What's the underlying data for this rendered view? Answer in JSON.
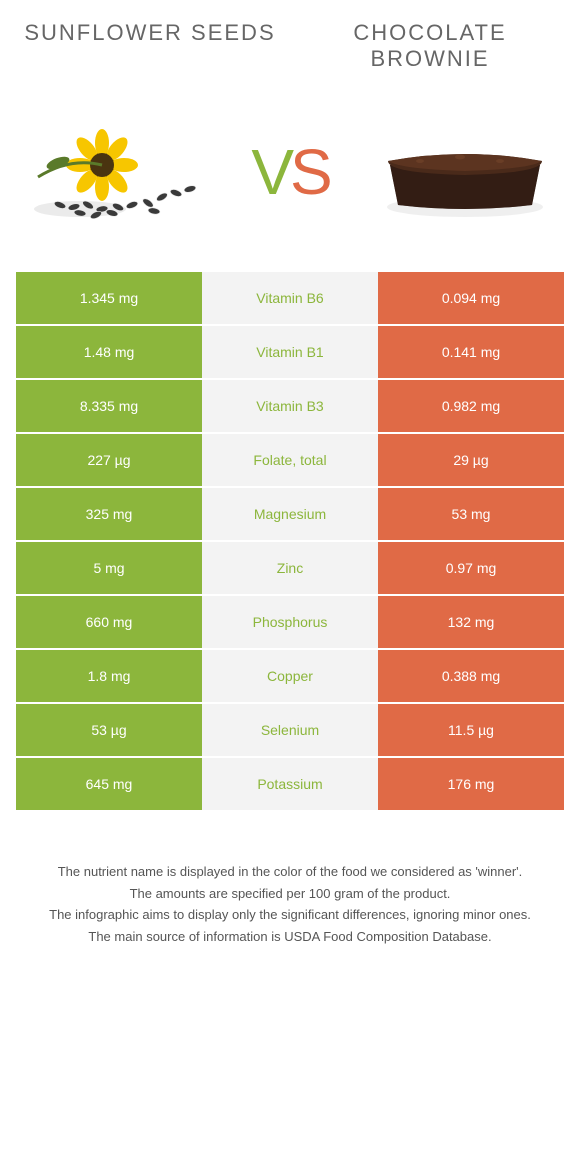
{
  "colors": {
    "left": "#8cb63c",
    "right": "#e06a46",
    "mid_bg": "#f3f3f3",
    "page_bg": "#ffffff",
    "text": "#555555"
  },
  "header": {
    "left_title": "Sunflower seeds",
    "right_title": "Chocolate brownie",
    "vs_v": "V",
    "vs_s": "S"
  },
  "rows": [
    {
      "left": "1.345 mg",
      "label": "Vitamin B6",
      "right": "0.094 mg",
      "winner": "green"
    },
    {
      "left": "1.48 mg",
      "label": "Vitamin B1",
      "right": "0.141 mg",
      "winner": "green"
    },
    {
      "left": "8.335 mg",
      "label": "Vitamin B3",
      "right": "0.982 mg",
      "winner": "green"
    },
    {
      "left": "227 µg",
      "label": "Folate, total",
      "right": "29 µg",
      "winner": "green"
    },
    {
      "left": "325 mg",
      "label": "Magnesium",
      "right": "53 mg",
      "winner": "green"
    },
    {
      "left": "5 mg",
      "label": "Zinc",
      "right": "0.97 mg",
      "winner": "green"
    },
    {
      "left": "660 mg",
      "label": "Phosphorus",
      "right": "132 mg",
      "winner": "green"
    },
    {
      "left": "1.8 mg",
      "label": "Copper",
      "right": "0.388 mg",
      "winner": "green"
    },
    {
      "left": "53 µg",
      "label": "Selenium",
      "right": "11.5 µg",
      "winner": "green"
    },
    {
      "left": "645 mg",
      "label": "Potassium",
      "right": "176 mg",
      "winner": "green"
    }
  ],
  "footer": {
    "line1": "The nutrient name is displayed in the color of the food we considered as 'winner'.",
    "line2": "The amounts are specified per 100 gram of the product.",
    "line3": "The infographic aims to display only the significant differences, ignoring minor ones.",
    "line4": "The main source of information is USDA Food Composition Database."
  }
}
